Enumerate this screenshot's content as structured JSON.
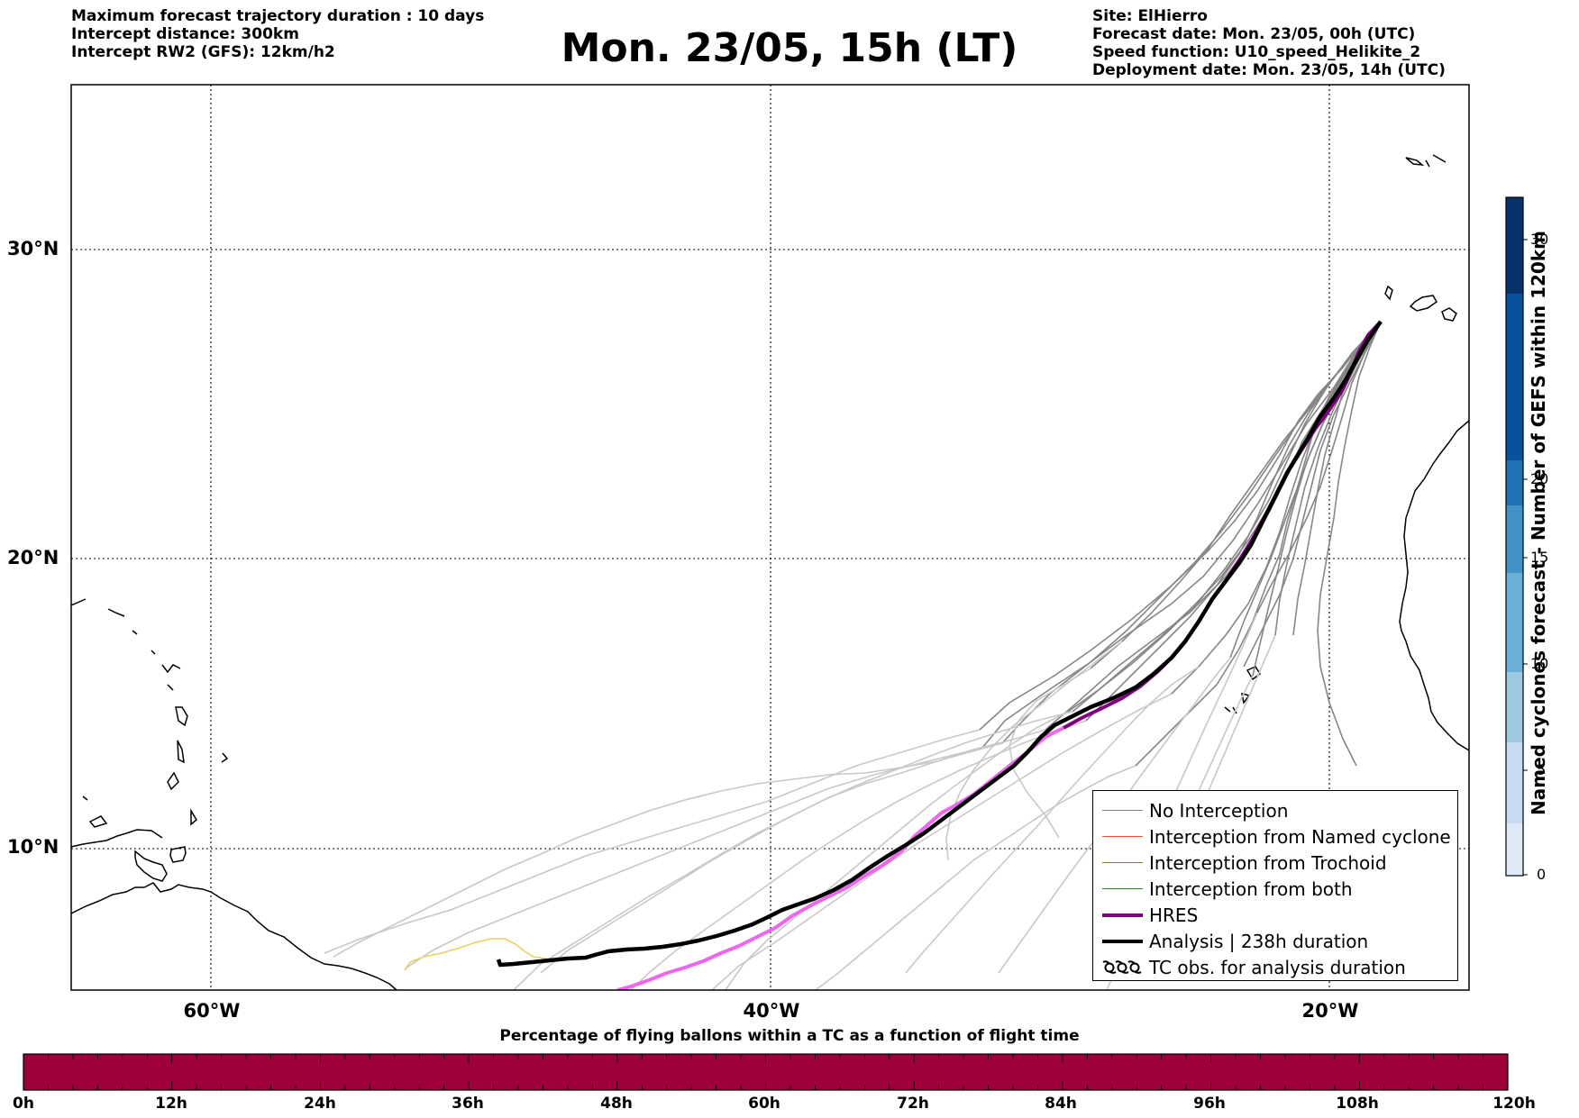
{
  "header": {
    "left_lines": [
      "Maximum forecast trajectory duration : 10 days",
      "Intercept distance: 300km",
      "Intercept RW2 (GFS):  12km/h2"
    ],
    "title": "Mon. 23/05, 15h (LT)",
    "right_lines": [
      "Site: ElHierro",
      "Forecast date: Mon. 23/05, 00h (UTC)",
      "Speed function: U10_speed_Helikite_2",
      "Deployment date: Mon. 23/05, 14h (UTC)"
    ]
  },
  "map": {
    "extent": {
      "lon_min": -65,
      "lon_max": -15,
      "lat_min": 5.4,
      "lat_max": 35.3
    },
    "lat_labels": [
      "30°N",
      "20°N",
      "10°N"
    ],
    "lon_labels": [
      "60°W",
      "40°W",
      "20°W"
    ],
    "gridlines": {
      "lats": [
        30,
        20,
        10
      ],
      "lons": [
        -60,
        -40,
        -20
      ],
      "style": "dotted"
    },
    "colors": {
      "no_interception": "#808080",
      "named_cyclone": "#f05020",
      "trochoid": "#808000",
      "both": "#208020",
      "hres": "#800080",
      "hres_late": "#ee66ee",
      "analysis": "#000000",
      "ensemble_late": "#c8c8c8",
      "yellow_track": "#e8d060"
    }
  },
  "legend": {
    "items": [
      {
        "label": "No Interception",
        "icon": "thin-gray-line"
      },
      {
        "label": "Interception from Named cyclone",
        "icon": "thin-orange-line"
      },
      {
        "label": "Interception from Trochoid",
        "icon": "thin-olive-line"
      },
      {
        "label": "Interception from both",
        "icon": "thin-green-line"
      },
      {
        "label": "HRES",
        "icon": "thick-purple-line"
      },
      {
        "label": "Analysis | 238h duration",
        "icon": "thick-black-line"
      },
      {
        "label": "TC obs. for analysis duration",
        "icon": "cyclone-symbols-icon"
      }
    ]
  },
  "colorbar": {
    "label": "Named cyclones forecast - Number of GEFS within 120km",
    "ticks": [
      "30",
      "20",
      "15",
      "10",
      "5",
      "0"
    ],
    "colors_dark_to_light": [
      "#08306b",
      "#08519c",
      "#2171b5",
      "#4292c6",
      "#6baed6",
      "#9ecae1",
      "#c6dbef",
      "#deebf7"
    ]
  },
  "bottom_bar": {
    "title": "Percentage of flying ballons within a TC as a function of flight time",
    "color": "#9e003a",
    "hour_labels": [
      "0h",
      "12h",
      "24h",
      "36h",
      "48h",
      "60h",
      "72h",
      "84h",
      "96h",
      "108h",
      "120h"
    ]
  }
}
